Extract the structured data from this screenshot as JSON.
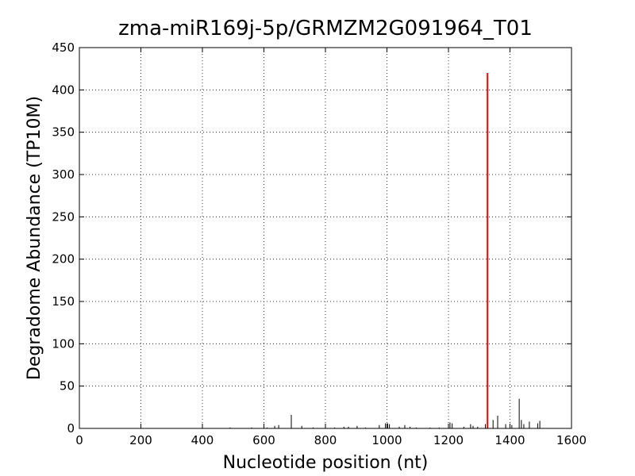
{
  "chart_data": {
    "type": "stem",
    "title": "zma-miR169j-5p/GRMZM2G091964_T01",
    "x_label": "Nucleotide position (nt)",
    "y_label": "Degradome Abundance (TP10M)",
    "xlim": [
      0,
      1600
    ],
    "xticks": [
      0,
      200,
      400,
      600,
      800,
      1000,
      1200,
      1400,
      1600
    ],
    "ylim": [
      0,
      450
    ],
    "yticks": [
      0,
      50,
      100,
      150,
      200,
      250,
      300,
      350,
      400,
      450
    ],
    "grid": true,
    "series": [
      {
        "color": "#000000",
        "x": [
          490,
          560,
          610,
          635,
          648,
          689,
          723,
          760,
          800,
          830,
          860,
          875,
          903,
          930,
          975,
          995,
          1002,
          1008,
          1040,
          1058,
          1075,
          1095,
          1140,
          1170,
          1205,
          1212,
          1250,
          1272,
          1280,
          1295,
          1320,
          1345,
          1360,
          1386,
          1406,
          1430,
          1437,
          1445,
          1463,
          1490,
          1497
        ],
        "values": [
          1,
          1,
          1,
          3,
          4,
          16,
          3,
          1,
          2,
          1,
          2,
          2,
          3,
          1,
          4,
          6,
          6,
          5,
          2,
          4,
          2,
          1,
          1,
          1,
          7,
          6,
          2,
          5,
          3,
          2,
          5,
          10,
          15,
          5,
          4,
          35,
          10,
          5,
          8,
          6,
          9
        ]
      },
      {
        "color": "#ff0000",
        "x": [
          1327
        ],
        "values": [
          420
        ]
      }
    ]
  }
}
